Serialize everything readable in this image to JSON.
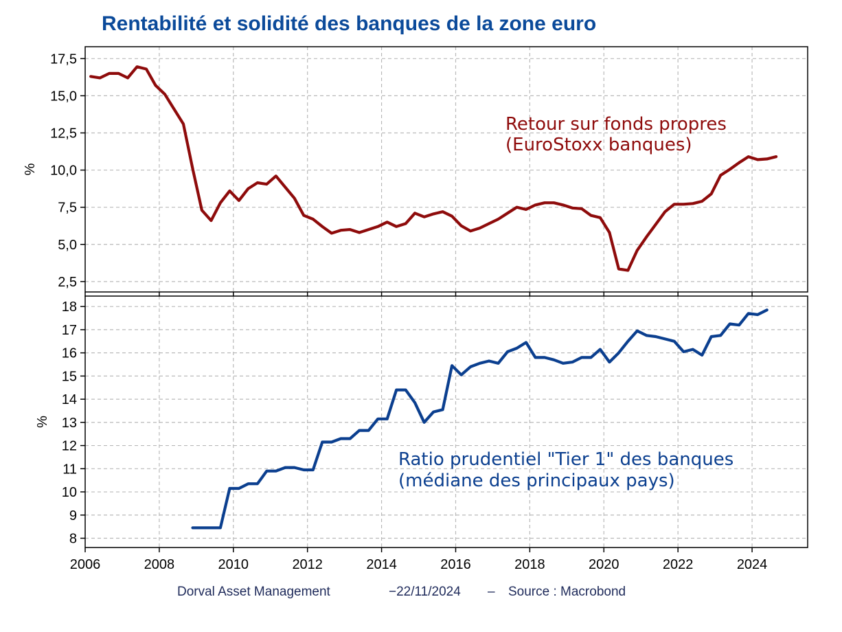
{
  "title": "Rentabilité et solidité des banques de la zone euro",
  "footer": {
    "left": "Dorval Asset Management",
    "date": "−22/11/2024",
    "sep": "–",
    "source": "Source : Macrobond"
  },
  "colors": {
    "title": "#0b4a9a",
    "roe": "#8e0b0b",
    "tier1": "#0b3f8f",
    "grid": "#b9b9b9",
    "axis": "#000000",
    "footer": "#1e2a5a"
  },
  "chart_data": [
    {
      "type": "line",
      "panel": "top",
      "ylabel": "%",
      "ylim": [
        1.8,
        18.3
      ],
      "yticks": [
        2.5,
        5.0,
        7.5,
        10.0,
        12.5,
        15.0,
        17.5
      ],
      "ytick_labels": [
        "2,5",
        "5,0",
        "7,5",
        "10,0",
        "12,5",
        "15,0",
        "17,5"
      ],
      "xlim": [
        2006,
        2025.5
      ],
      "xticks": [
        2006,
        2008,
        2010,
        2012,
        2014,
        2016,
        2018,
        2020,
        2022,
        2024
      ],
      "label_lines": [
        "Retour sur fonds propres",
        "(EuroStoxx banques)"
      ],
      "series": [
        {
          "name": "Retour sur fonds propres (EuroStoxx banques)",
          "x": [
            2006.15,
            2006.4,
            2006.65,
            2006.9,
            2007.15,
            2007.4,
            2007.65,
            2007.9,
            2008.15,
            2008.4,
            2008.65,
            2008.9,
            2009.15,
            2009.4,
            2009.65,
            2009.9,
            2010.15,
            2010.4,
            2010.65,
            2010.9,
            2011.15,
            2011.4,
            2011.65,
            2011.9,
            2012.15,
            2012.4,
            2012.65,
            2012.9,
            2013.15,
            2013.4,
            2013.65,
            2013.9,
            2014.15,
            2014.4,
            2014.65,
            2014.9,
            2015.15,
            2015.4,
            2015.65,
            2015.9,
            2016.15,
            2016.4,
            2016.65,
            2016.9,
            2017.15,
            2017.4,
            2017.65,
            2017.9,
            2018.15,
            2018.4,
            2018.65,
            2018.9,
            2019.15,
            2019.4,
            2019.65,
            2019.9,
            2020.15,
            2020.4,
            2020.65,
            2020.9,
            2021.15,
            2021.4,
            2021.65,
            2021.9,
            2022.15,
            2022.4,
            2022.65,
            2022.9,
            2023.15,
            2023.4,
            2023.65,
            2023.9,
            2024.15,
            2024.4,
            2024.65
          ],
          "values": [
            16.3,
            16.2,
            16.5,
            16.5,
            16.2,
            16.95,
            16.8,
            15.7,
            15.1,
            14.1,
            13.1,
            10.1,
            7.3,
            6.6,
            7.8,
            8.6,
            7.95,
            8.75,
            9.15,
            9.05,
            9.6,
            8.85,
            8.1,
            6.95,
            6.7,
            6.2,
            5.75,
            5.95,
            6.0,
            5.8,
            6.0,
            6.2,
            6.5,
            6.2,
            6.4,
            7.1,
            6.85,
            7.05,
            7.2,
            6.9,
            6.25,
            5.9,
            6.1,
            6.4,
            6.7,
            7.1,
            7.5,
            7.35,
            7.65,
            7.8,
            7.8,
            7.65,
            7.45,
            7.4,
            6.95,
            6.8,
            5.8,
            3.35,
            3.25,
            4.6,
            5.5,
            6.35,
            7.2,
            7.7,
            7.7,
            7.75,
            7.9,
            8.4,
            9.65,
            10.05,
            10.5,
            10.9,
            10.7,
            10.75,
            10.9
          ]
        }
      ]
    },
    {
      "type": "line",
      "panel": "bottom",
      "ylabel": "%",
      "ylim": [
        7.6,
        18.45
      ],
      "yticks": [
        8,
        9,
        10,
        11,
        12,
        13,
        14,
        15,
        16,
        17,
        18
      ],
      "ytick_labels": [
        "8",
        "9",
        "10",
        "11",
        "12",
        "13",
        "14",
        "15",
        "16",
        "17",
        "18"
      ],
      "xlim": [
        2006,
        2025.5
      ],
      "xticks": [
        2006,
        2008,
        2010,
        2012,
        2014,
        2016,
        2018,
        2020,
        2022,
        2024
      ],
      "xtick_labels": [
        "2006",
        "2008",
        "2010",
        "2012",
        "2014",
        "2016",
        "2018",
        "2020",
        "2022",
        "2024"
      ],
      "label_lines": [
        "Ratio prudentiel \"Tier 1\" des banques",
        "(médiane des principaux pays)"
      ],
      "series": [
        {
          "name": "Ratio prudentiel \"Tier 1\" des banques (médiane des principaux pays)",
          "x": [
            2008.9,
            2009.15,
            2009.4,
            2009.65,
            2009.9,
            2010.15,
            2010.4,
            2010.65,
            2010.9,
            2011.15,
            2011.4,
            2011.65,
            2011.9,
            2012.15,
            2012.4,
            2012.65,
            2012.9,
            2013.15,
            2013.4,
            2013.65,
            2013.9,
            2014.15,
            2014.4,
            2014.65,
            2014.9,
            2015.15,
            2015.4,
            2015.65,
            2015.9,
            2016.15,
            2016.4,
            2016.65,
            2016.9,
            2017.15,
            2017.4,
            2017.65,
            2017.9,
            2018.15,
            2018.4,
            2018.65,
            2018.9,
            2019.15,
            2019.4,
            2019.65,
            2019.9,
            2020.15,
            2020.4,
            2020.65,
            2020.9,
            2021.15,
            2021.4,
            2021.65,
            2021.9,
            2022.15,
            2022.4,
            2022.65,
            2022.9,
            2023.15,
            2023.4,
            2023.65,
            2023.9,
            2024.15,
            2024.4
          ],
          "values": [
            8.45,
            8.45,
            8.45,
            8.45,
            10.15,
            10.15,
            10.35,
            10.35,
            10.9,
            10.9,
            11.05,
            11.05,
            10.95,
            10.95,
            12.15,
            12.15,
            12.3,
            12.3,
            12.65,
            12.65,
            13.15,
            13.15,
            14.4,
            14.4,
            13.85,
            13.0,
            13.45,
            13.55,
            15.45,
            15.05,
            15.4,
            15.55,
            15.65,
            15.55,
            16.05,
            16.2,
            16.45,
            15.8,
            15.8,
            15.7,
            15.55,
            15.6,
            15.8,
            15.8,
            16.15,
            15.6,
            16.0,
            16.5,
            16.95,
            16.75,
            16.7,
            16.6,
            16.5,
            16.05,
            16.15,
            15.9,
            16.7,
            16.75,
            17.25,
            17.2,
            17.7,
            17.65,
            17.85
          ]
        }
      ]
    }
  ]
}
